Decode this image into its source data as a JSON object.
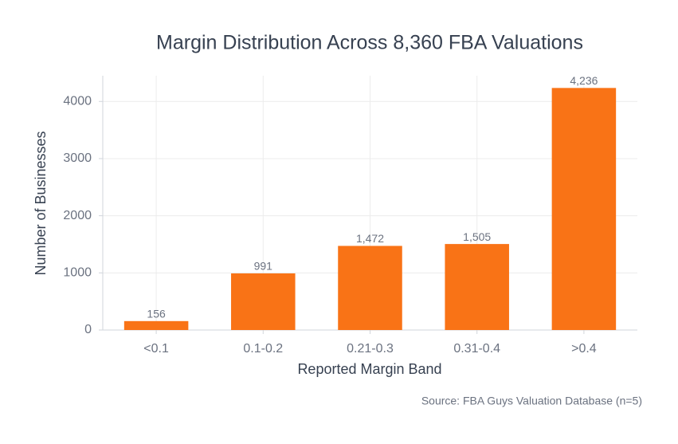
{
  "chart_data": {
    "type": "bar",
    "title": "Margin Distribution Across 8,360 FBA Valuations",
    "x_label": "Reported Margin Band",
    "y_label": "Number of Businesses",
    "source": "Source: FBA Guys Valuation Database (n=5)",
    "categories": [
      "<0.1",
      "0.1-0.2",
      "0.21-0.3",
      "0.31-0.4",
      ">0.4"
    ],
    "values": [
      156,
      991,
      1472,
      1505,
      4236
    ],
    "value_labels": [
      "156",
      "991",
      "1,472",
      "1,505",
      "4,236"
    ],
    "color": "#f97316",
    "ylim": [
      0,
      4450
    ],
    "yticks": [
      0,
      1000,
      2000,
      3000,
      4000
    ],
    "grid": true
  }
}
